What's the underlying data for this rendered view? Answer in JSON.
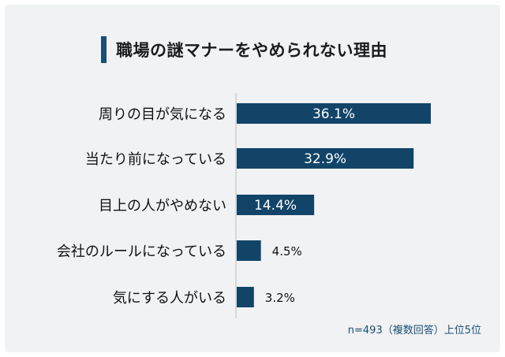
{
  "title": "職場の謎マナーをやめられない理由",
  "note": "n=493（複数回答）上位5位",
  "colors": {
    "bar": "#124468",
    "frame": "#f0f2f4",
    "accent": "#1b4f72"
  },
  "chart_data": {
    "type": "bar",
    "orientation": "horizontal",
    "categories": [
      "周りの目が気になる",
      "当たり前になっている",
      "目上の人がやめない",
      "会社のルールになっている",
      "気にする人がいる"
    ],
    "values": [
      36.1,
      32.9,
      14.4,
      4.5,
      3.2
    ],
    "value_labels": [
      "36.1%",
      "32.9%",
      "14.4%",
      "4.5%",
      "3.2%"
    ],
    "unit": "%",
    "xlim": [
      0,
      38
    ],
    "grid": false,
    "legend": "none"
  }
}
